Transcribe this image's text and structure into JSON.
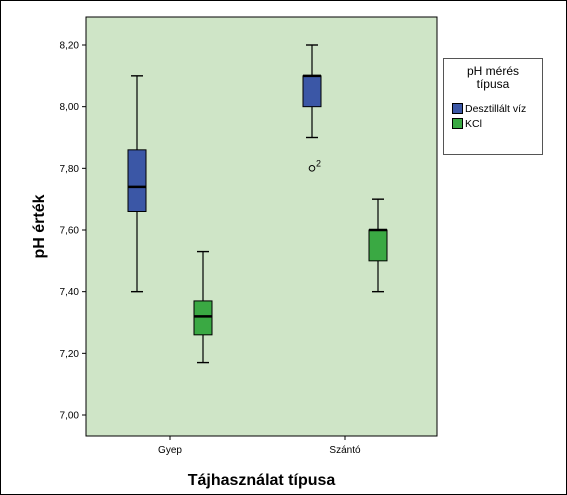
{
  "chart_data": {
    "type": "boxplot",
    "xlabel": "Tájhasználat típusa",
    "ylabel": "pH érték",
    "categories": [
      "Gyep",
      "Szántó"
    ],
    "ylim": [
      6.96,
      8.26
    ],
    "yticks": [
      "7,00",
      "7,20",
      "7,40",
      "7,60",
      "7,80",
      "8,00",
      "8,20"
    ],
    "ytick_values": [
      7.0,
      7.2,
      7.4,
      7.6,
      7.8,
      8.0,
      8.2
    ],
    "plot_background": "#cfe5c7",
    "legend": {
      "title_line1": "pH mérés",
      "title_line2": "típusa",
      "placement": "right"
    },
    "series": [
      {
        "name": "Desztillált víz",
        "color": "#3b57a6",
        "boxes": [
          {
            "category": "Gyep",
            "min": 7.4,
            "q1": 7.66,
            "median": 7.74,
            "q3": 7.86,
            "max": 8.1,
            "outliers": []
          },
          {
            "category": "Szántó",
            "min": 7.9,
            "q1": 8.0,
            "median": 8.1,
            "q3": 8.1,
            "max": 8.2,
            "outliers": [
              {
                "value": 7.8,
                "label": "2"
              }
            ]
          }
        ]
      },
      {
        "name": "KCl",
        "color": "#3aa943",
        "boxes": [
          {
            "category": "Gyep",
            "min": 7.17,
            "q1": 7.26,
            "median": 7.32,
            "q3": 7.37,
            "max": 7.53,
            "outliers": []
          },
          {
            "category": "Szántó",
            "min": 7.4,
            "q1": 7.5,
            "median": 7.6,
            "q3": 7.6,
            "max": 7.7,
            "outliers": []
          }
        ]
      }
    ]
  }
}
